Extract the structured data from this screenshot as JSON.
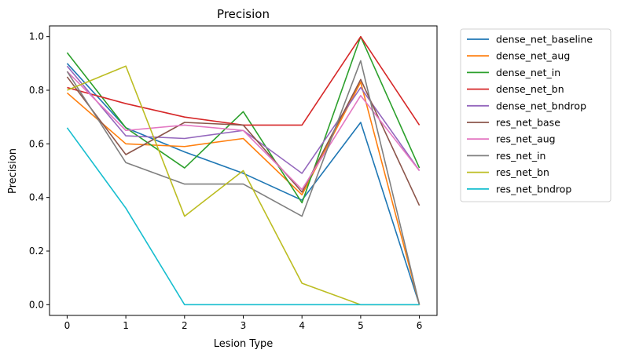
{
  "chart_data": {
    "type": "line",
    "title": "Precision",
    "xlabel": "Lesion Type",
    "ylabel": "Precision",
    "x": [
      0,
      1,
      2,
      3,
      4,
      5,
      6
    ],
    "xlim": [
      -0.3,
      6.3
    ],
    "ylim": [
      -0.04,
      1.04
    ],
    "xticks": [
      "0",
      "1",
      "2",
      "3",
      "4",
      "5",
      "6"
    ],
    "yticks": [
      "0.0",
      "0.2",
      "0.4",
      "0.6",
      "0.8",
      "1.0"
    ],
    "grid": false,
    "legend_position": "outside-right",
    "series": [
      {
        "name": "dense_net_baseline",
        "color": "#1f77b4",
        "values": [
          0.9,
          0.66,
          0.57,
          0.49,
          0.39,
          0.68,
          0.0
        ]
      },
      {
        "name": "dense_net_aug",
        "color": "#ff7f0e",
        "values": [
          0.79,
          0.6,
          0.59,
          0.62,
          0.41,
          0.83,
          0.0
        ]
      },
      {
        "name": "dense_net_in",
        "color": "#2ca02c",
        "values": [
          0.94,
          0.66,
          0.51,
          0.72,
          0.38,
          1.0,
          0.51
        ]
      },
      {
        "name": "dense_net_bn",
        "color": "#d62728",
        "values": [
          0.81,
          0.75,
          0.7,
          0.67,
          0.67,
          1.0,
          0.67
        ]
      },
      {
        "name": "dense_net_bndrop",
        "color": "#9467bd",
        "values": [
          0.89,
          0.63,
          0.62,
          0.65,
          0.49,
          0.81,
          0.5
        ]
      },
      {
        "name": "res_net_base",
        "color": "#8c564b",
        "values": [
          0.85,
          0.56,
          0.68,
          0.67,
          0.42,
          0.84,
          0.37
        ]
      },
      {
        "name": "res_net_aug",
        "color": "#e377c2",
        "values": [
          0.87,
          0.65,
          0.67,
          0.65,
          0.43,
          0.78,
          0.5
        ]
      },
      {
        "name": "res_net_in",
        "color": "#7f7f7f",
        "values": [
          0.87,
          0.53,
          0.45,
          0.45,
          0.33,
          0.91,
          0.0
        ]
      },
      {
        "name": "res_net_bn",
        "color": "#bcbd22",
        "values": [
          0.8,
          0.89,
          0.33,
          0.5,
          0.08,
          0.0,
          0.0
        ]
      },
      {
        "name": "res_net_bndrop",
        "color": "#17becf",
        "values": [
          0.66,
          0.36,
          0.0,
          0.0,
          0.0,
          0.0,
          0.0
        ]
      }
    ]
  }
}
